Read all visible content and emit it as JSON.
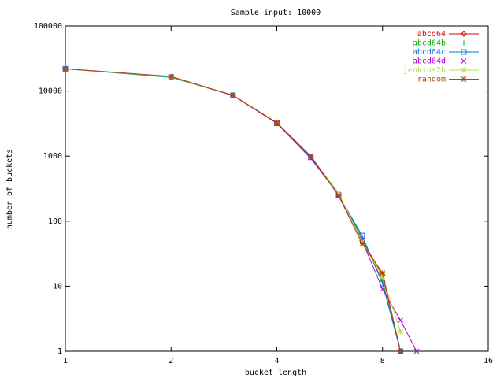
{
  "chart_data": {
    "type": "line",
    "title": "Sample input: 10000",
    "x_label": "bucket length",
    "y_label": "number of buckets",
    "x": [
      1,
      2,
      3,
      4,
      5,
      6,
      7,
      8,
      9,
      10
    ],
    "xscale": "log",
    "yscale": "log",
    "xlim": [
      1,
      16
    ],
    "xticks": [
      1,
      2,
      4,
      8,
      16
    ],
    "ylim": [
      1,
      100000
    ],
    "yticks": [
      1,
      10,
      100,
      1000,
      10000,
      100000
    ],
    "grid": false,
    "legend": "top-right",
    "series": [
      {
        "name": "abcd64",
        "color": "#e00000",
        "marker": "diamond",
        "values": [
          22000,
          16500,
          8600,
          3200,
          980,
          250,
          50,
          15,
          1,
          null
        ]
      },
      {
        "name": "abcd64b",
        "color": "#00b000",
        "marker": "plus",
        "values": [
          22000,
          16200,
          8600,
          3250,
          990,
          255,
          55,
          12,
          1,
          null
        ]
      },
      {
        "name": "abcd64c",
        "color": "#1070e0",
        "marker": "square",
        "values": [
          22000,
          16400,
          8600,
          3200,
          960,
          250,
          60,
          11,
          1,
          null
        ]
      },
      {
        "name": "abcd64d",
        "color": "#b000e0",
        "marker": "x",
        "values": [
          22000,
          16700,
          8500,
          3200,
          920,
          255,
          50,
          9,
          3,
          1
        ]
      },
      {
        "name": "jenkins2b",
        "color": "#b8e040",
        "marker": "star",
        "values": [
          22000,
          16600,
          8600,
          3300,
          1000,
          270,
          48,
          14,
          2,
          null
        ]
      },
      {
        "name": "random",
        "color": "#b04010",
        "marker": "asterisk",
        "values": [
          22000,
          16800,
          8600,
          3250,
          1000,
          245,
          45,
          16,
          1,
          null
        ]
      }
    ]
  }
}
